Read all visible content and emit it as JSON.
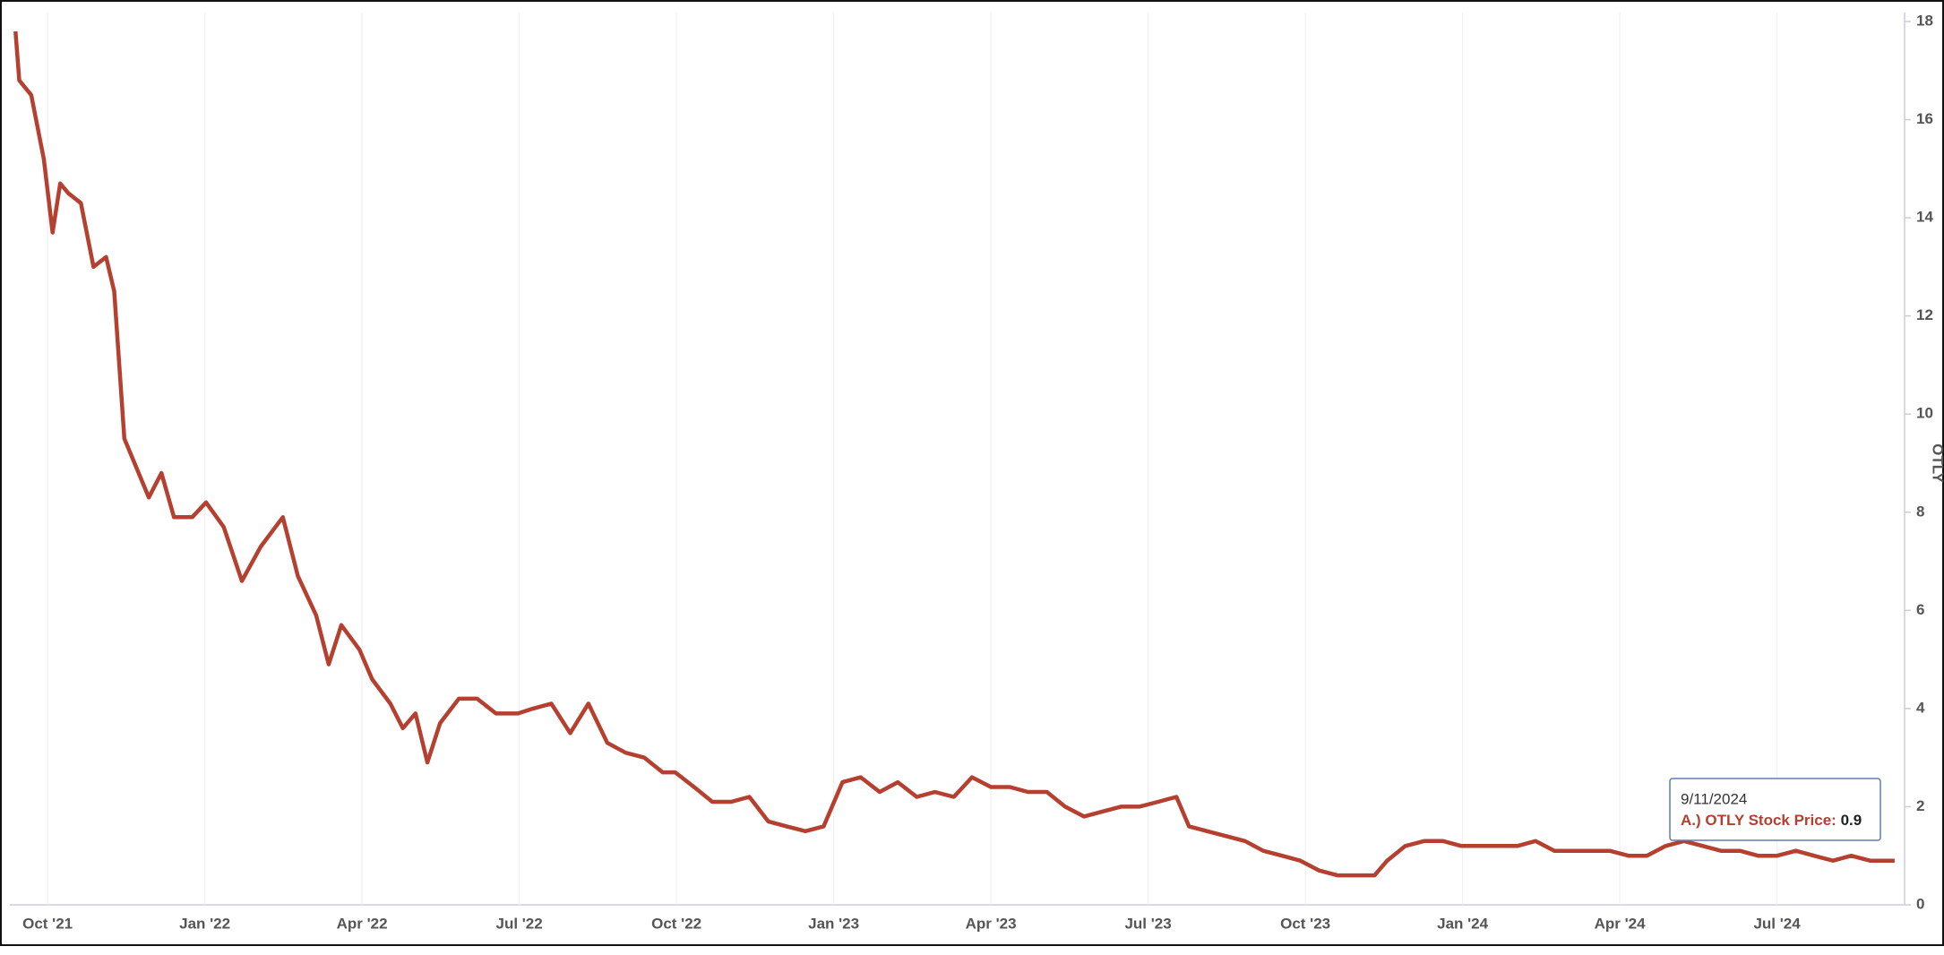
{
  "chart_data": {
    "type": "line",
    "y_label": "OTLY",
    "color": "#b5402f",
    "x": [
      2021.699,
      2021.705,
      2021.724,
      2021.744,
      2021.758,
      2021.77,
      2021.783,
      2021.803,
      2021.823,
      2021.843,
      2021.856,
      2021.872,
      2021.911,
      2021.931,
      2021.951,
      2021.98,
      2022.002,
      2022.03,
      2022.059,
      2022.089,
      2022.124,
      2022.148,
      2022.177,
      2022.197,
      2022.217,
      2022.246,
      2022.266,
      2022.295,
      2022.315,
      2022.335,
      2022.354,
      2022.374,
      2022.404,
      2022.433,
      2022.463,
      2022.498,
      2022.522,
      2022.551,
      2022.581,
      2022.61,
      2022.64,
      2022.669,
      2022.699,
      2022.728,
      2022.748,
      2022.778,
      2022.807,
      2022.837,
      2022.866,
      2022.896,
      2022.925,
      2022.955,
      2022.984,
      2023.014,
      2023.043,
      2023.073,
      2023.102,
      2023.132,
      2023.161,
      2023.191,
      2023.22,
      2023.25,
      2023.28,
      2023.309,
      2023.339,
      2023.368,
      2023.398,
      2023.427,
      2023.457,
      2023.486,
      2023.516,
      2023.545,
      2023.565,
      2023.594,
      2023.624,
      2023.654,
      2023.683,
      2023.713,
      2023.742,
      2023.772,
      2023.801,
      2023.831,
      2023.86,
      2023.88,
      2023.909,
      2023.939,
      2023.969,
      2023.998,
      2024.028,
      2024.057,
      2024.087,
      2024.116,
      2024.146,
      2024.175,
      2024.205,
      2024.234,
      2024.264,
      2024.293,
      2024.323,
      2024.352,
      2024.382,
      2024.411,
      2024.441,
      2024.47,
      2024.5,
      2024.53,
      2024.559,
      2024.589,
      2024.618,
      2024.648,
      2024.687
    ],
    "values": [
      17.8,
      16.8,
      16.5,
      15.2,
      13.7,
      14.7,
      14.5,
      14.3,
      13.0,
      13.2,
      12.5,
      9.5,
      8.3,
      8.8,
      7.9,
      7.9,
      8.2,
      7.7,
      6.6,
      7.3,
      7.9,
      6.7,
      5.9,
      4.9,
      5.7,
      5.2,
      4.6,
      4.1,
      3.6,
      3.9,
      2.9,
      3.7,
      4.2,
      4.2,
      3.9,
      3.9,
      4.0,
      4.1,
      3.5,
      4.1,
      3.3,
      3.1,
      3.0,
      2.7,
      2.7,
      2.4,
      2.1,
      2.1,
      2.2,
      1.7,
      1.6,
      1.5,
      1.6,
      2.5,
      2.6,
      2.3,
      2.5,
      2.2,
      2.3,
      2.2,
      2.6,
      2.4,
      2.4,
      2.3,
      2.3,
      2.0,
      1.8,
      1.9,
      2.0,
      2.0,
      2.1,
      2.2,
      1.6,
      1.5,
      1.4,
      1.3,
      1.1,
      1.0,
      0.9,
      0.7,
      0.6,
      0.6,
      0.6,
      0.9,
      1.2,
      1.3,
      1.3,
      1.2,
      1.2,
      1.2,
      1.2,
      1.3,
      1.1,
      1.1,
      1.1,
      1.1,
      1.0,
      1.0,
      1.2,
      1.3,
      1.2,
      1.1,
      1.1,
      1.0,
      1.0,
      1.1,
      1.0,
      0.9,
      1.0,
      0.9,
      0.9
    ],
    "xlim": [
      2021.69,
      2024.7
    ],
    "xticks": [
      {
        "value": 2021.75,
        "label": "Oct '21"
      },
      {
        "value": 2022.0,
        "label": "Jan '22"
      },
      {
        "value": 2022.25,
        "label": "Apr '22"
      },
      {
        "value": 2022.5,
        "label": "Jul '22"
      },
      {
        "value": 2022.75,
        "label": "Oct '22"
      },
      {
        "value": 2023.0,
        "label": "Jan '23"
      },
      {
        "value": 2023.25,
        "label": "Apr '23"
      },
      {
        "value": 2023.5,
        "label": "Jul '23"
      },
      {
        "value": 2023.75,
        "label": "Oct '23"
      },
      {
        "value": 2024.0,
        "label": "Jan '24"
      },
      {
        "value": 2024.25,
        "label": "Apr '24"
      },
      {
        "value": 2024.5,
        "label": "Jul '24"
      }
    ],
    "ylim": [
      0,
      18
    ],
    "yticks": [
      0,
      2,
      4,
      6,
      8,
      10,
      12,
      14,
      16,
      18
    ],
    "grid": true,
    "tooltip": {
      "date": "9/11/2024",
      "label": "A.) OTLY Stock Price:",
      "value": 0.9
    }
  }
}
